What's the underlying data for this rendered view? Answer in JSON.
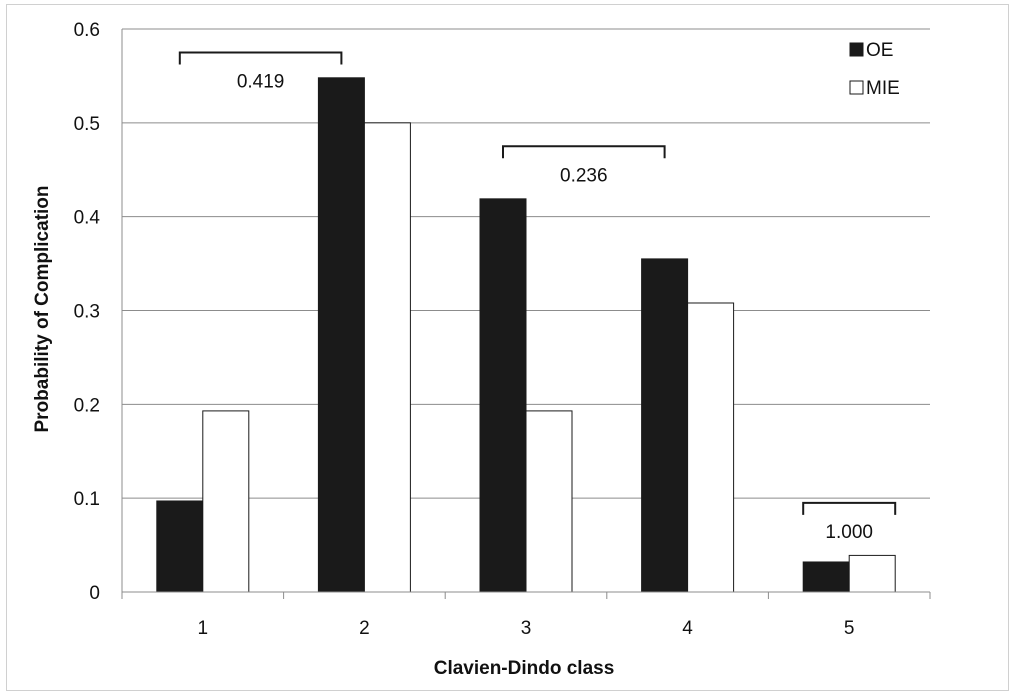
{
  "chart_data": {
    "type": "bar",
    "title": "",
    "xlabel": "Clavien-Dindo class",
    "ylabel": "Probability of Complication",
    "categories": [
      "1",
      "2",
      "3",
      "4",
      "5"
    ],
    "ylim": [
      0,
      0.6
    ],
    "yticks": [
      "0",
      "0.1",
      "0.2",
      "0.3",
      "0.4",
      "0.5",
      "0.6"
    ],
    "grid": true,
    "legend_position": "top-right",
    "series": [
      {
        "name": "OE",
        "color": "#1a1a1a",
        "values": [
          0.097,
          0.548,
          0.419,
          0.355,
          0.032
        ]
      },
      {
        "name": "MIE",
        "color": "#ffffff",
        "values": [
          0.193,
          0.5,
          0.193,
          0.308,
          0.039
        ]
      }
    ],
    "annotations": [
      {
        "text": "0.419",
        "from_category": "1",
        "to_category": "2",
        "y": 0.575
      },
      {
        "text": "0.236",
        "from_category": "3",
        "to_category": "4",
        "y": 0.475
      },
      {
        "text": "1.000",
        "from_category": "5",
        "to_category": "5",
        "y": 0.095
      }
    ]
  }
}
